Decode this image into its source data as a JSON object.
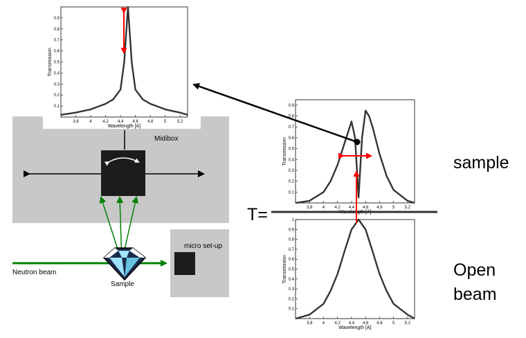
{
  "labels": {
    "midibox": "Midibox",
    "micro_setup": "micro set-up",
    "neutron_beam": "Neutron beam",
    "sample_small": "Sample",
    "t_equals": "T=",
    "sample_big": "sample",
    "open_beam_line1": "Open",
    "open_beam_line2": "beam"
  },
  "colors": {
    "box_gray": "#c8c8c8",
    "beam_green": "#008000",
    "arrow_red": "#ff0000",
    "curve": "#333333"
  },
  "chart_data": [
    {
      "id": "transmission-result",
      "type": "line",
      "xlabel": "Wavelength [A]",
      "ylabel": "Transmission",
      "xlim": [
        3.6,
        5.3
      ],
      "ylim": [
        0,
        1
      ],
      "xticks": [
        "3.8",
        "4",
        "4.2",
        "4.4",
        "4.6",
        "4.8",
        "5",
        "5.2"
      ],
      "yticks": [
        "0.1",
        "0.2",
        "0.3",
        "0.4",
        "0.5",
        "0.6",
        "0.7",
        "0.8",
        "0.9"
      ],
      "x": [
        3.6,
        3.8,
        4.0,
        4.2,
        4.3,
        4.4,
        4.45,
        4.5,
        4.55,
        4.6,
        4.7,
        4.8,
        5.0,
        5.2,
        5.3
      ],
      "y": [
        0.02,
        0.04,
        0.07,
        0.12,
        0.16,
        0.25,
        0.5,
        1.0,
        0.5,
        0.25,
        0.16,
        0.12,
        0.07,
        0.04,
        0.02
      ]
    },
    {
      "id": "transmission-sample",
      "type": "line",
      "xlabel": "Wavelength [A]",
      "ylabel": "Transmission",
      "xlim": [
        3.6,
        5.3
      ],
      "ylim": [
        0,
        0.95
      ],
      "xticks": [
        "3.8",
        "4",
        "4.2",
        "4.4",
        "4.6",
        "4.8",
        "5",
        "5.2"
      ],
      "yticks": [
        "0.1",
        "0.2",
        "0.3",
        "0.4",
        "0.5",
        "0.6",
        "0.7",
        "0.8",
        "0.9"
      ],
      "x": [
        3.6,
        3.8,
        4.0,
        4.1,
        4.2,
        4.3,
        4.4,
        4.45,
        4.5,
        4.55,
        4.6,
        4.65,
        4.7,
        4.8,
        4.9,
        5.0,
        5.2,
        5.3
      ],
      "y": [
        0.0,
        0.02,
        0.1,
        0.2,
        0.35,
        0.55,
        0.75,
        0.6,
        0.05,
        0.6,
        0.85,
        0.8,
        0.7,
        0.45,
        0.25,
        0.12,
        0.02,
        0.0
      ]
    },
    {
      "id": "transmission-open-beam",
      "type": "line",
      "xlabel": "Wavelength [A]",
      "ylabel": "Transmission",
      "xlim": [
        3.6,
        5.3
      ],
      "ylim": [
        0,
        1
      ],
      "xticks": [
        "3.8",
        "4",
        "4.2",
        "4.4",
        "4.6",
        "4.8",
        "5",
        "5.2"
      ],
      "yticks": [
        "0.1",
        "0.2",
        "0.3",
        "0.4",
        "0.5",
        "0.6",
        "0.7",
        "0.8",
        "0.9",
        "1"
      ],
      "x": [
        3.6,
        3.8,
        4.0,
        4.1,
        4.2,
        4.3,
        4.4,
        4.5,
        4.6,
        4.7,
        4.8,
        4.9,
        5.0,
        5.2,
        5.3
      ],
      "y": [
        0.0,
        0.04,
        0.15,
        0.28,
        0.45,
        0.68,
        0.9,
        1.0,
        0.9,
        0.68,
        0.45,
        0.28,
        0.15,
        0.04,
        0.0
      ]
    }
  ]
}
